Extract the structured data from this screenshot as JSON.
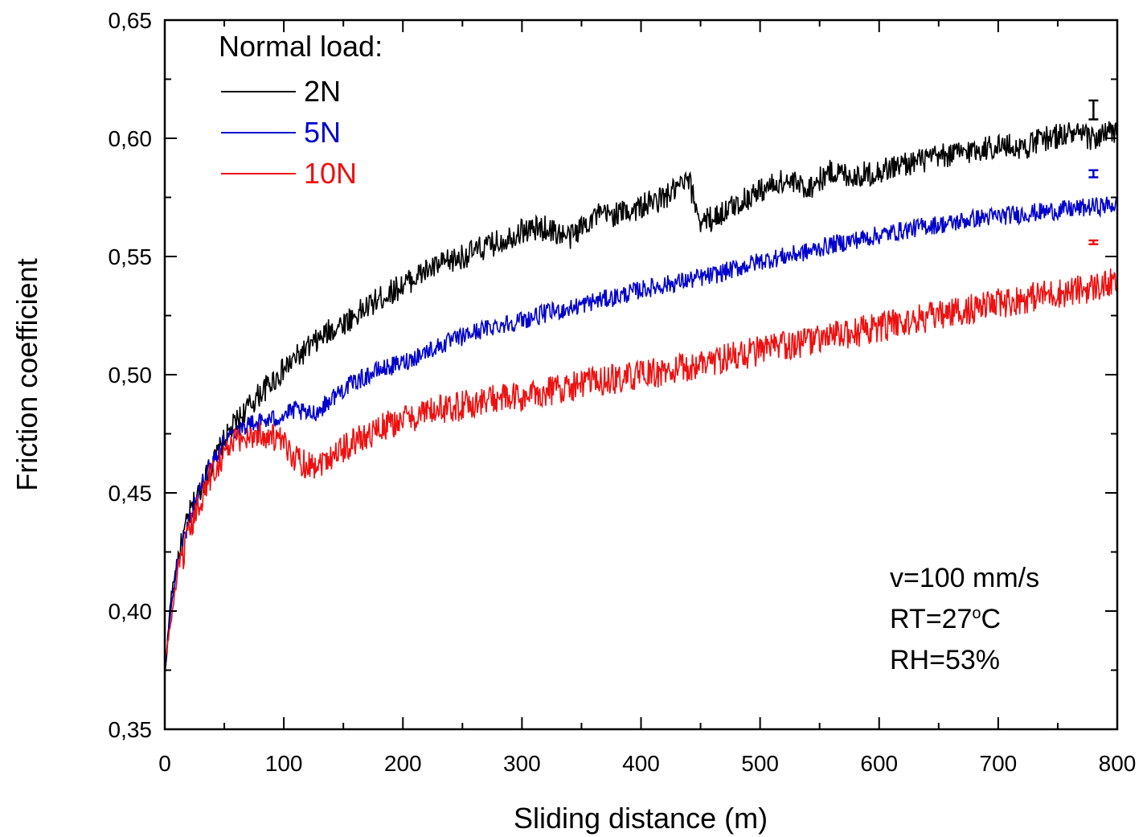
{
  "chart_data": {
    "type": "line",
    "xlabel": "Sliding distance (m)",
    "ylabel": "Friction coefficient",
    "xlim": [
      0,
      800
    ],
    "ylim": [
      0.35,
      0.65
    ],
    "x_ticks": [
      0,
      100,
      200,
      300,
      400,
      500,
      600,
      700,
      800
    ],
    "x_tick_labels": [
      "0",
      "100",
      "200",
      "300",
      "400",
      "500",
      "600",
      "700",
      "800"
    ],
    "y_ticks": [
      0.35,
      0.4,
      0.45,
      0.5,
      0.55,
      0.6,
      0.65
    ],
    "y_tick_labels": [
      "0,35",
      "0,40",
      "0,45",
      "0,50",
      "0,55",
      "0,60",
      "0,65"
    ],
    "grid": false,
    "legend": {
      "title": "Normal load:",
      "placement": "top-left"
    },
    "series": [
      {
        "name": "2N",
        "color": "#000000",
        "x": [
          0,
          5,
          10,
          20,
          30,
          40,
          50,
          60,
          70,
          80,
          90,
          100,
          110,
          120,
          130,
          140,
          150,
          160,
          180,
          200,
          220,
          240,
          260,
          280,
          300,
          320,
          340,
          360,
          380,
          400,
          420,
          440,
          450,
          460,
          480,
          500,
          520,
          540,
          560,
          580,
          600,
          620,
          640,
          660,
          680,
          700,
          720,
          740,
          760,
          780,
          800
        ],
        "y": [
          0.372,
          0.405,
          0.42,
          0.44,
          0.452,
          0.462,
          0.472,
          0.48,
          0.486,
          0.492,
          0.497,
          0.502,
          0.507,
          0.511,
          0.515,
          0.519,
          0.522,
          0.525,
          0.532,
          0.538,
          0.544,
          0.548,
          0.552,
          0.556,
          0.561,
          0.562,
          0.558,
          0.567,
          0.568,
          0.571,
          0.575,
          0.582,
          0.565,
          0.566,
          0.572,
          0.578,
          0.582,
          0.579,
          0.586,
          0.584,
          0.586,
          0.589,
          0.591,
          0.593,
          0.595,
          0.597,
          0.596,
          0.6,
          0.602,
          0.6,
          0.603
        ],
        "error_bar": {
          "x": 780,
          "y": 0.612,
          "err": 0.004
        }
      },
      {
        "name": "5N",
        "color": "#0000cc",
        "x": [
          0,
          5,
          10,
          20,
          30,
          40,
          50,
          60,
          70,
          80,
          90,
          100,
          110,
          120,
          130,
          140,
          150,
          160,
          180,
          200,
          220,
          240,
          260,
          280,
          300,
          320,
          340,
          360,
          380,
          400,
          420,
          440,
          460,
          480,
          500,
          520,
          540,
          560,
          580,
          600,
          620,
          640,
          660,
          680,
          700,
          720,
          740,
          760,
          780,
          800
        ],
        "y": [
          0.375,
          0.4,
          0.418,
          0.438,
          0.452,
          0.464,
          0.472,
          0.477,
          0.479,
          0.48,
          0.481,
          0.483,
          0.485,
          0.483,
          0.485,
          0.49,
          0.494,
          0.497,
          0.502,
          0.505,
          0.51,
          0.514,
          0.518,
          0.521,
          0.523,
          0.526,
          0.528,
          0.531,
          0.533,
          0.536,
          0.538,
          0.54,
          0.542,
          0.545,
          0.548,
          0.55,
          0.552,
          0.555,
          0.557,
          0.559,
          0.561,
          0.563,
          0.564,
          0.566,
          0.567,
          0.568,
          0.569,
          0.57,
          0.571,
          0.572
        ],
        "error_bar": {
          "x": 780,
          "y": 0.585,
          "err": 0.0015
        }
      },
      {
        "name": "10N",
        "color": "#ee1111",
        "x": [
          0,
          5,
          10,
          20,
          30,
          40,
          50,
          60,
          70,
          80,
          90,
          100,
          110,
          120,
          130,
          140,
          150,
          160,
          180,
          200,
          220,
          240,
          260,
          280,
          300,
          320,
          340,
          360,
          380,
          400,
          420,
          440,
          460,
          480,
          500,
          520,
          540,
          560,
          580,
          600,
          620,
          640,
          660,
          680,
          700,
          720,
          740,
          760,
          780,
          800
        ],
        "y": [
          0.378,
          0.395,
          0.413,
          0.432,
          0.447,
          0.459,
          0.467,
          0.472,
          0.474,
          0.475,
          0.474,
          0.47,
          0.465,
          0.462,
          0.463,
          0.466,
          0.469,
          0.472,
          0.477,
          0.481,
          0.484,
          0.486,
          0.488,
          0.49,
          0.49,
          0.493,
          0.495,
          0.497,
          0.498,
          0.5,
          0.501,
          0.503,
          0.506,
          0.508,
          0.51,
          0.512,
          0.514,
          0.516,
          0.518,
          0.52,
          0.522,
          0.524,
          0.526,
          0.528,
          0.53,
          0.532,
          0.534,
          0.535,
          0.537,
          0.539
        ],
        "error_bar": {
          "x": 780,
          "y": 0.556,
          "err": 0.0008
        }
      }
    ],
    "annotations": [
      "v=100 mm/s",
      "RT=27",
      "o",
      "C",
      "RH=53%"
    ]
  }
}
